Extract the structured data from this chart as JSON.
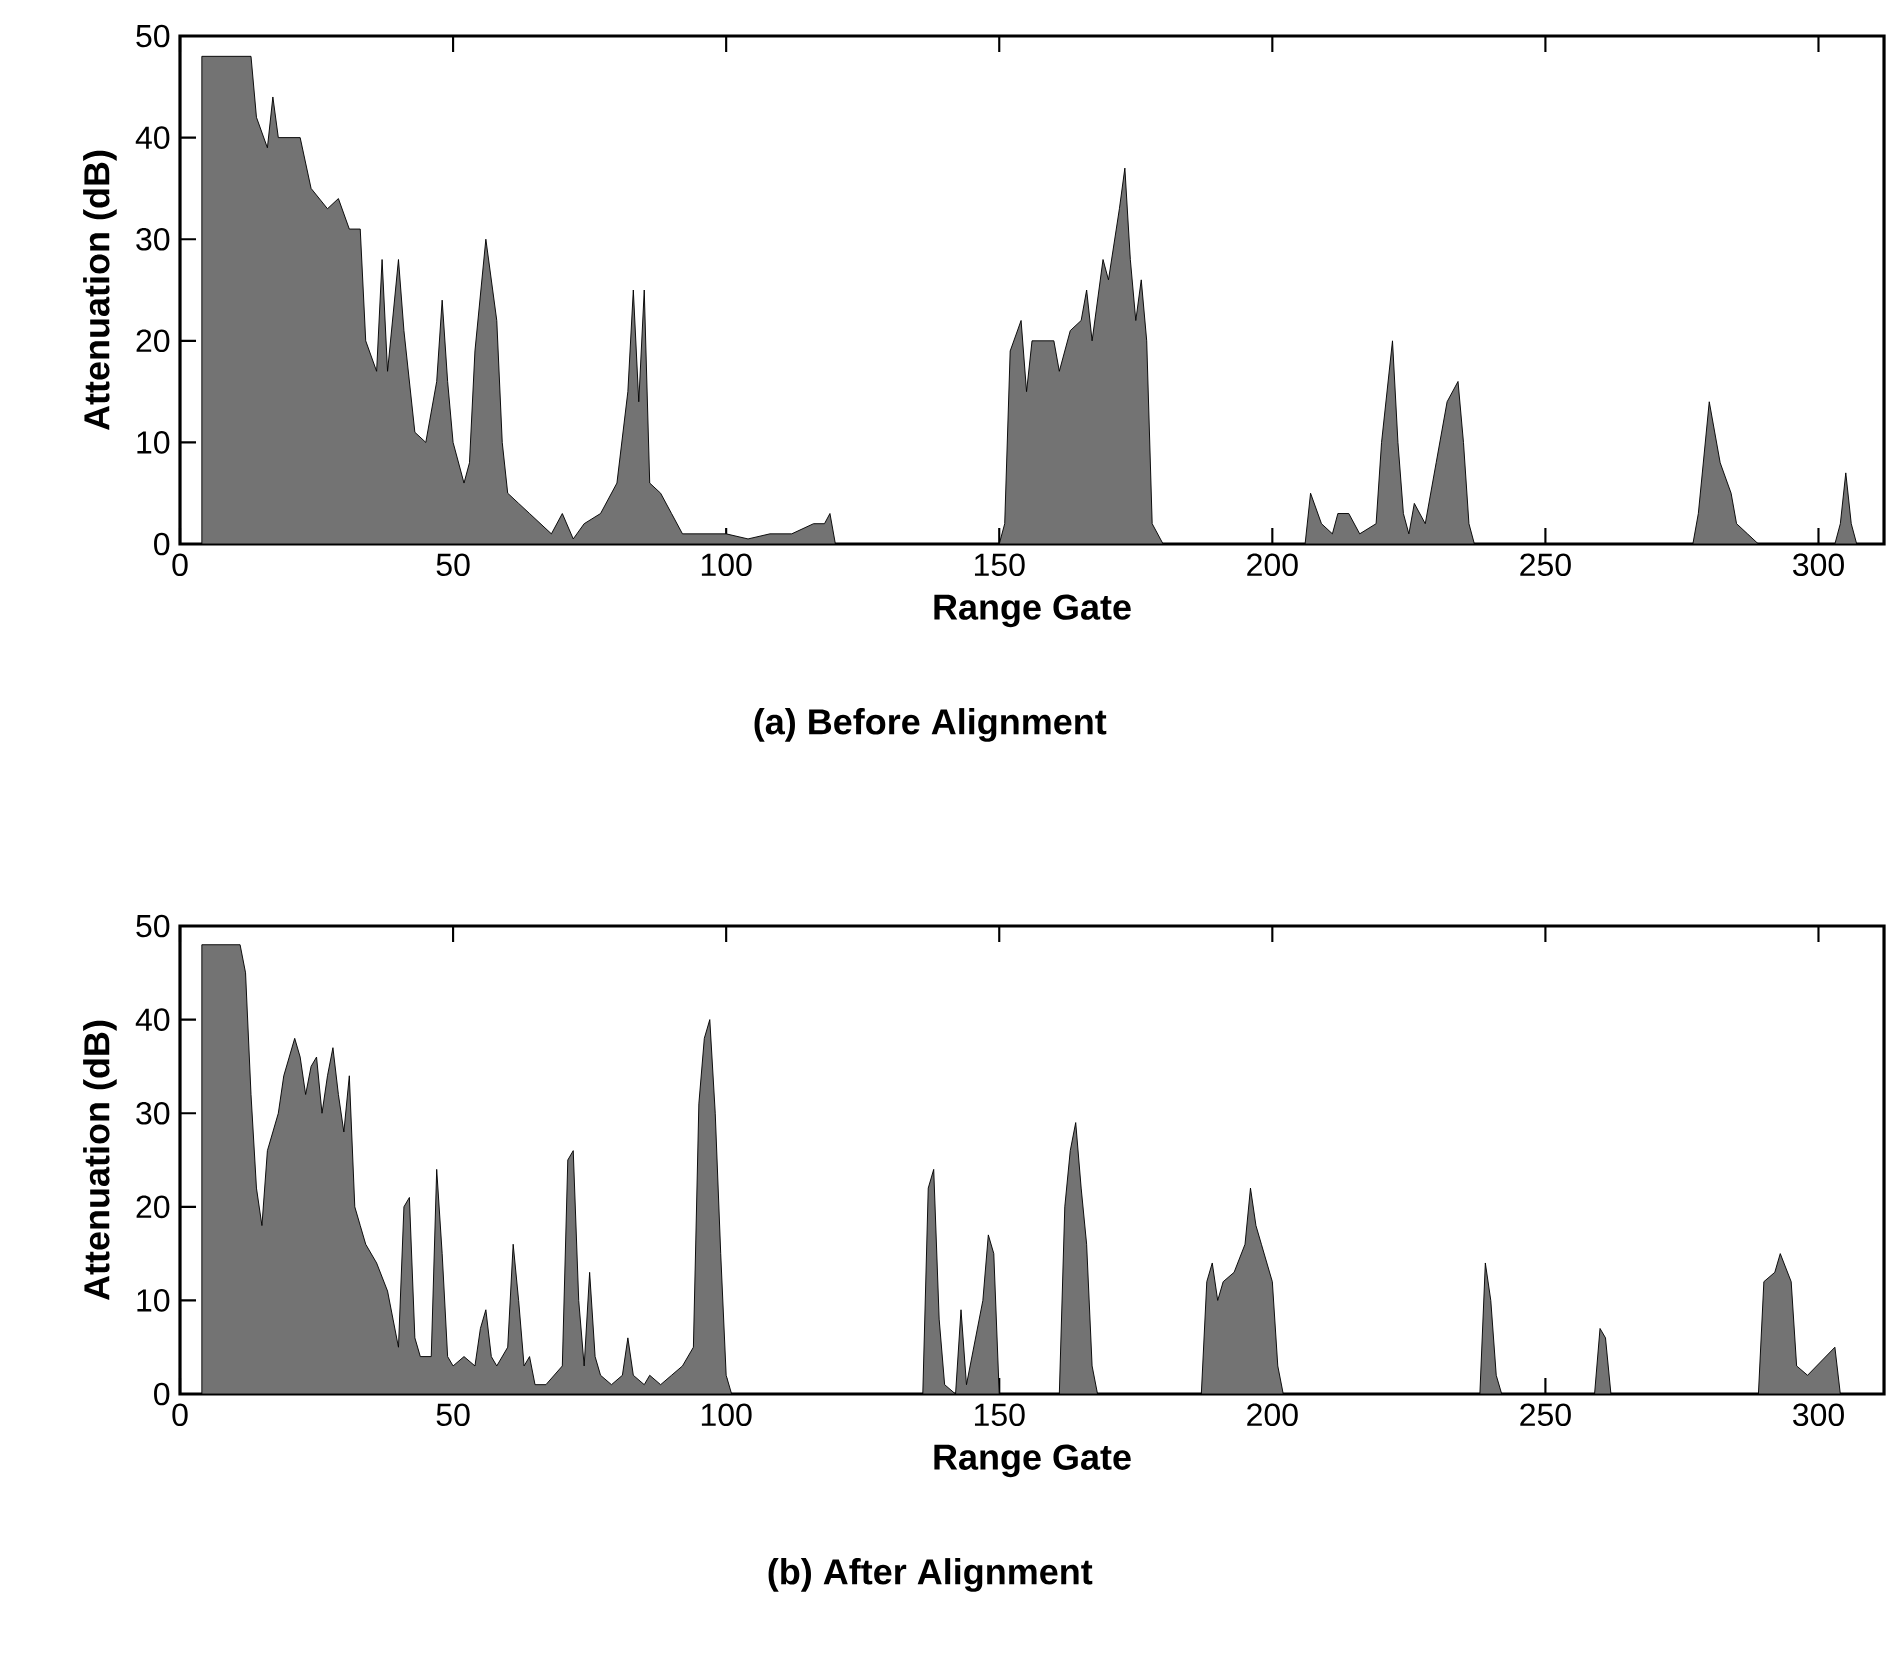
{
  "chart_data": [
    {
      "type": "area",
      "xlabel": "Range Gate",
      "ylabel": "Attenuation (dB)",
      "annotations": [
        "(a) Before Alignment"
      ],
      "xlim": [
        0,
        312
      ],
      "ylim": [
        0,
        50
      ],
      "xticks": [
        0,
        50,
        100,
        150,
        200,
        250,
        300
      ],
      "yticks": [
        0,
        10,
        20,
        30,
        40,
        50
      ],
      "color": "#000000",
      "x": [
        0,
        4,
        4,
        5,
        13,
        14,
        16,
        17,
        18,
        22,
        24,
        27,
        29,
        31,
        33,
        34,
        36,
        37,
        38,
        40,
        41,
        43,
        45,
        47,
        48,
        49,
        50,
        52,
        53,
        54,
        56,
        58,
        59,
        60,
        62,
        64,
        66,
        68,
        70,
        72,
        74,
        77,
        80,
        82,
        83,
        84,
        85,
        86,
        88,
        90,
        92,
        95,
        100,
        104,
        108,
        112,
        116,
        118,
        119,
        120,
        150,
        151,
        152,
        154,
        155,
        156,
        160,
        161,
        163,
        165,
        166,
        167,
        169,
        170,
        172,
        173,
        174,
        175,
        176,
        177,
        178,
        180,
        206,
        207,
        209,
        211,
        212,
        214,
        216,
        219,
        220,
        222,
        223,
        224,
        225,
        226,
        228,
        230,
        232,
        234,
        235,
        236,
        237,
        277,
        278,
        280,
        282,
        284,
        285,
        287,
        289,
        303,
        304,
        305,
        306,
        307,
        312
      ],
      "values": [
        0,
        0,
        48,
        48,
        48,
        42,
        39,
        44,
        40,
        40,
        35,
        33,
        34,
        31,
        31,
        20,
        17,
        28,
        17,
        28,
        21,
        11,
        10,
        16,
        24,
        16,
        10,
        6,
        8,
        19,
        30,
        22,
        10,
        5,
        4,
        3,
        2,
        1,
        3,
        0.5,
        2,
        3,
        6,
        15,
        25,
        14,
        25,
        6,
        5,
        3,
        1,
        1,
        1,
        0.5,
        1,
        1,
        2,
        2,
        3,
        0,
        0,
        2,
        19,
        22,
        15,
        20,
        20,
        17,
        21,
        22,
        25,
        20,
        28,
        26,
        33,
        37,
        28,
        22,
        26,
        20,
        2,
        0,
        0,
        5,
        2,
        1,
        3,
        3,
        1,
        2,
        10,
        20,
        10,
        3,
        1,
        4,
        2,
        8,
        14,
        16,
        10,
        2,
        0,
        0,
        3,
        14,
        8,
        5,
        2,
        1,
        0,
        0,
        2,
        7,
        2,
        0,
        0
      ]
    },
    {
      "type": "area",
      "xlabel": "Range Gate",
      "ylabel": "Attenuation (dB)",
      "annotations": [
        "(b) After Alignment"
      ],
      "xlim": [
        0,
        312
      ],
      "ylim": [
        0,
        50
      ],
      "xticks": [
        0,
        50,
        100,
        150,
        200,
        250,
        300
      ],
      "yticks": [
        0,
        10,
        20,
        30,
        40,
        50
      ],
      "color": "#000000",
      "x": [
        0,
        4,
        4,
        5,
        11,
        12,
        13,
        14,
        15,
        16,
        18,
        19,
        20,
        21,
        22,
        23,
        24,
        25,
        26,
        27,
        28,
        29,
        30,
        31,
        32,
        33,
        34,
        36,
        38,
        39,
        40,
        41,
        42,
        43,
        44,
        46,
        47,
        48,
        49,
        50,
        52,
        54,
        55,
        56,
        57,
        58,
        60,
        61,
        62,
        63,
        64,
        65,
        67,
        70,
        71,
        72,
        73,
        74,
        75,
        76,
        77,
        79,
        81,
        82,
        83,
        85,
        86,
        88,
        90,
        92,
        94,
        95,
        96,
        97,
        98,
        99,
        100,
        101,
        136,
        137,
        138,
        139,
        140,
        142,
        143,
        144,
        147,
        148,
        149,
        150,
        161,
        162,
        163,
        164,
        165,
        166,
        167,
        168,
        187,
        188,
        189,
        190,
        191,
        193,
        195,
        196,
        197,
        198,
        200,
        201,
        202,
        238,
        239,
        240,
        241,
        242,
        259,
        260,
        261,
        262,
        289,
        290,
        292,
        293,
        295,
        296,
        298,
        303,
        304,
        312
      ],
      "values": [
        0,
        0,
        48,
        48,
        48,
        45,
        32,
        22,
        18,
        26,
        30,
        34,
        36,
        38,
        36,
        32,
        35,
        36,
        30,
        34,
        37,
        32,
        28,
        34,
        20,
        18,
        16,
        14,
        11,
        8,
        5,
        20,
        21,
        6,
        4,
        4,
        24,
        15,
        4,
        3,
        4,
        3,
        7,
        9,
        4,
        3,
        5,
        16,
        10,
        3,
        4,
        1,
        1,
        3,
        25,
        26,
        10,
        3,
        13,
        4,
        2,
        1,
        2,
        6,
        2,
        1,
        2,
        1,
        2,
        3,
        5,
        31,
        38,
        40,
        30,
        15,
        2,
        0,
        0,
        22,
        24,
        8,
        1,
        0,
        9,
        1,
        10,
        17,
        15,
        0,
        0,
        20,
        26,
        29,
        22,
        16,
        3,
        0,
        0,
        12,
        14,
        10,
        12,
        13,
        16,
        22,
        18,
        16,
        12,
        3,
        0,
        0,
        14,
        10,
        2,
        0,
        0,
        7,
        6,
        0,
        0,
        12,
        13,
        15,
        12,
        3,
        2,
        5,
        0,
        0
      ]
    }
  ]
}
